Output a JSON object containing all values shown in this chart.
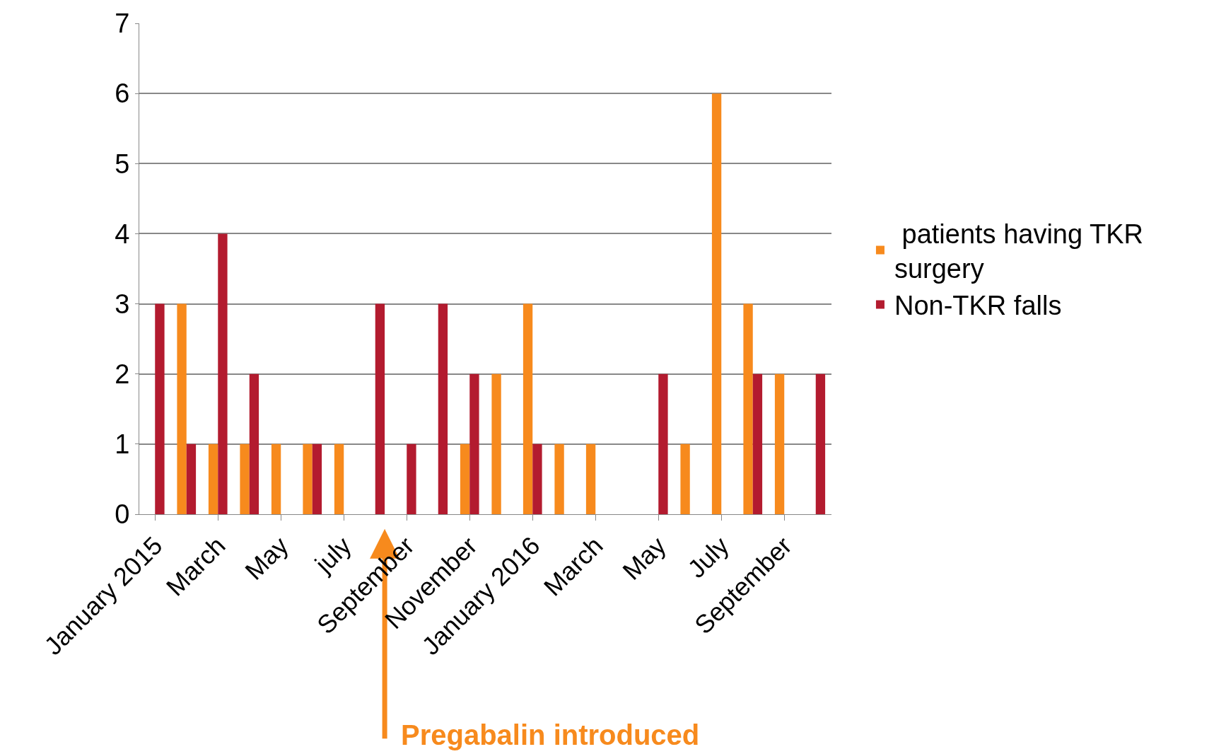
{
  "chart_data": {
    "type": "bar",
    "categories": [
      "January 2015",
      null,
      "March",
      null,
      "May",
      null,
      "july",
      null,
      "September",
      null,
      "November",
      null,
      "January 2016",
      null,
      "March",
      null,
      "May",
      null,
      "July",
      null,
      "September",
      null
    ],
    "series": [
      {
        "name": " patients having TKR surgery",
        "color": "#f78a1d",
        "values": [
          0,
          3,
          1,
          1,
          1,
          1,
          1,
          0,
          0,
          0,
          1,
          2,
          3,
          1,
          1,
          0,
          0,
          1,
          6,
          3,
          2,
          0
        ]
      },
      {
        "name": "Non-TKR falls",
        "color": "#b31b2f",
        "values": [
          3,
          1,
          4,
          2,
          0,
          1,
          0,
          3,
          1,
          3,
          2,
          0,
          1,
          0,
          0,
          0,
          2,
          0,
          0,
          2,
          0,
          2
        ]
      }
    ],
    "ylim": [
      0,
      7
    ],
    "yticks": [
      0,
      1,
      2,
      3,
      4,
      5,
      6,
      7
    ],
    "grid": "y",
    "legend": "right",
    "annotations": [
      "Pregabalin introduced"
    ]
  }
}
